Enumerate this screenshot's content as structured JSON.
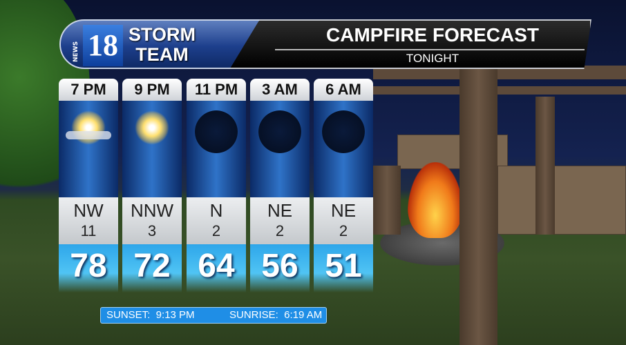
{
  "header": {
    "brand_number": "18",
    "brand_news": "NEWS",
    "brand_name": "STORM TEAM",
    "brand_line1": "STORM",
    "brand_line2": "TEAM",
    "title": "CAMPFIRE FORECAST",
    "subtitle": "TONIGHT"
  },
  "forecast": [
    {
      "time": "7 PM",
      "icon": "partly-cloudy-sun",
      "wind_dir": "NW",
      "wind_speed": "11",
      "temp": "78"
    },
    {
      "time": "9 PM",
      "icon": "sun",
      "wind_dir": "NNW",
      "wind_speed": "3",
      "temp": "72"
    },
    {
      "time": "11 PM",
      "icon": "clear-night",
      "wind_dir": "N",
      "wind_speed": "2",
      "temp": "64"
    },
    {
      "time": "3 AM",
      "icon": "clear-night",
      "wind_dir": "NE",
      "wind_speed": "2",
      "temp": "56"
    },
    {
      "time": "6 AM",
      "icon": "clear-night",
      "wind_dir": "NE",
      "wind_speed": "2",
      "temp": "51"
    }
  ],
  "sun_times": {
    "sunset": "SUNSET:  9:13 PM",
    "sunrise": "SUNRISE:  6:19 AM"
  },
  "colors": {
    "accent_blue": "#2ea6ea",
    "banner_blue": "#1d3f8c"
  }
}
